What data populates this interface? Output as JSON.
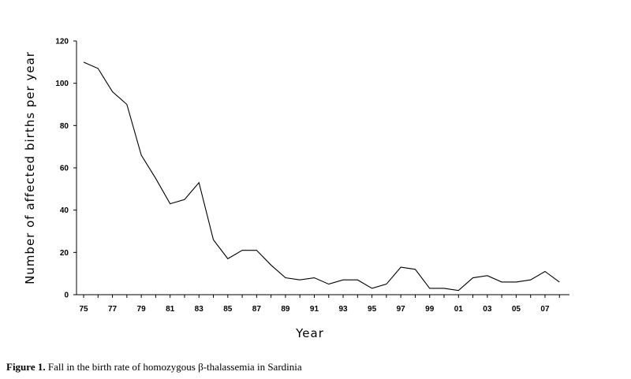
{
  "figure": {
    "caption_label": "Figure 1.",
    "caption_text": " Fall in the birth rate of homozygous β-thalassemia in Sardinia"
  },
  "chart_data": {
    "type": "line",
    "xlabel": "Year",
    "ylabel": "Number of affected births per year",
    "ylim": [
      0,
      120
    ],
    "y_ticks": [
      "0",
      "20",
      "40",
      "60",
      "80",
      "100",
      "120"
    ],
    "x_tick_labels": [
      "75",
      "77",
      "79",
      "81",
      "83",
      "85",
      "87",
      "89",
      "91",
      "93",
      "95",
      "97",
      "99",
      "01",
      "03",
      "05",
      "07"
    ],
    "x": [
      "1975",
      "1976",
      "1977",
      "1978",
      "1979",
      "1980",
      "1981",
      "1982",
      "1983",
      "1984",
      "1985",
      "1986",
      "1987",
      "1988",
      "1989",
      "1990",
      "1991",
      "1992",
      "1993",
      "1994",
      "1995",
      "1996",
      "1997",
      "1998",
      "1999",
      "2000",
      "2001",
      "2002",
      "2003",
      "2004",
      "2005",
      "2006",
      "2007",
      "2008"
    ],
    "series": [
      {
        "values": [
          110,
          107,
          96,
          90,
          66,
          55,
          43,
          45,
          53,
          26,
          17,
          21,
          21,
          14,
          8,
          7,
          8,
          5,
          7,
          7,
          3,
          5,
          13,
          12,
          3,
          3,
          2,
          8,
          9,
          6,
          6,
          7,
          11,
          6
        ]
      }
    ],
    "line_color": "#000000",
    "grid": false
  }
}
